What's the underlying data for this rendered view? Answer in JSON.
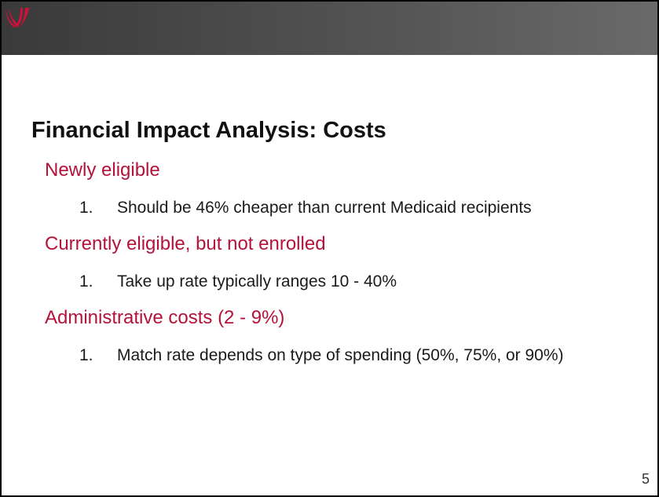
{
  "slide": {
    "title": "Financial Impact Analysis: Costs",
    "sections": [
      {
        "heading": "Newly eligible",
        "items": [
          {
            "number": "1.",
            "text": "Should be 46% cheaper than current Medicaid recipients"
          }
        ]
      },
      {
        "heading": "Currently eligible, but not enrolled",
        "items": [
          {
            "number": "1.",
            "text": "Take up rate typically ranges 10 - 40%"
          }
        ]
      },
      {
        "heading": "Administrative costs (2 - 9%)",
        "items": [
          {
            "number": "1.",
            "text": "Match rate depends on type of spending (50%, 75%, or 90%)"
          }
        ]
      }
    ],
    "page_number": "5"
  }
}
